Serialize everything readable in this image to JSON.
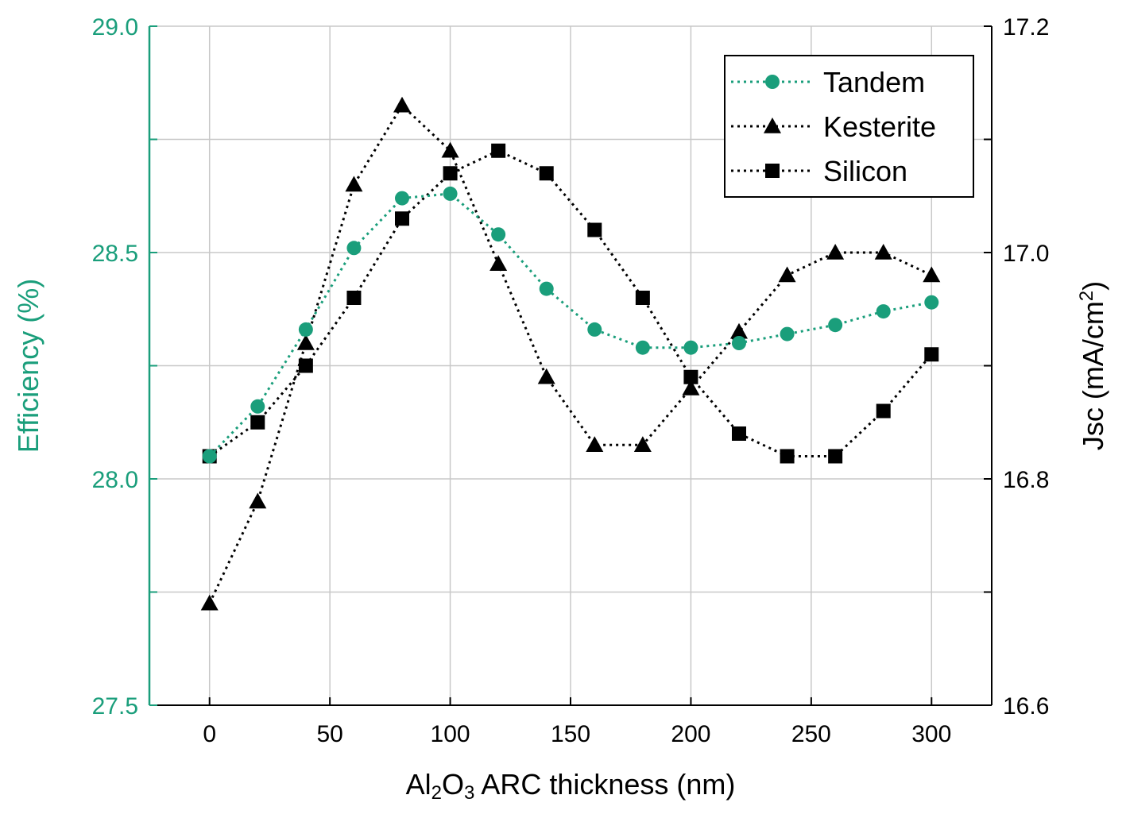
{
  "chart_data": {
    "type": "line",
    "xlabel_parts": [
      "Al",
      "2",
      "O",
      "3",
      " ARC thickness (nm)"
    ],
    "ylabel_left": "Efficiency (%)",
    "ylabel_right_parts": [
      "Jsc (mA/cm",
      "2",
      ")"
    ],
    "xlim": [
      -25,
      325
    ],
    "ylim_left": [
      27.5,
      29.0
    ],
    "ylim_right": [
      16.6,
      17.2
    ],
    "x_ticks": [
      0,
      50,
      100,
      150,
      200,
      250,
      300
    ],
    "x_tick_labels": [
      "0",
      "50",
      "100",
      "150",
      "200",
      "250",
      "300"
    ],
    "y_left_ticks": [
      27.5,
      28.0,
      28.5,
      29.0
    ],
    "y_left_tick_labels": [
      "27.5",
      "28.0",
      "28.5",
      "29.0"
    ],
    "y_right_ticks": [
      16.6,
      16.8,
      17.0,
      17.2
    ],
    "y_right_tick_labels": [
      "16.6",
      "16.8",
      "17.0",
      "17.2"
    ],
    "grid": true,
    "legend_position": "top-right",
    "colors": {
      "accent": "#1a9e7b",
      "black": "#000000",
      "grid": "#c8c8c8"
    },
    "x": [
      0,
      20,
      40,
      60,
      80,
      100,
      120,
      140,
      160,
      180,
      200,
      220,
      240,
      260,
      280,
      300
    ],
    "series": [
      {
        "name": "Tandem",
        "axis": "left",
        "marker": "circle",
        "color": "#1a9e7b",
        "values": [
          28.05,
          28.16,
          28.33,
          28.51,
          28.62,
          28.63,
          28.54,
          28.42,
          28.33,
          28.29,
          28.29,
          28.3,
          28.32,
          28.34,
          28.37,
          28.39
        ]
      },
      {
        "name": "Kesterite",
        "axis": "right",
        "marker": "triangle",
        "color": "#000000",
        "values": [
          16.69,
          16.78,
          16.92,
          17.06,
          17.13,
          17.09,
          16.99,
          16.89,
          16.83,
          16.83,
          16.88,
          16.93,
          16.98,
          17.0,
          17.0,
          16.98
        ]
      },
      {
        "name": "Silicon",
        "axis": "right",
        "marker": "square",
        "color": "#000000",
        "values": [
          16.82,
          16.85,
          16.9,
          16.96,
          17.03,
          17.07,
          17.09,
          17.07,
          17.02,
          16.96,
          16.89,
          16.84,
          16.82,
          16.82,
          16.86,
          16.91
        ]
      }
    ]
  }
}
